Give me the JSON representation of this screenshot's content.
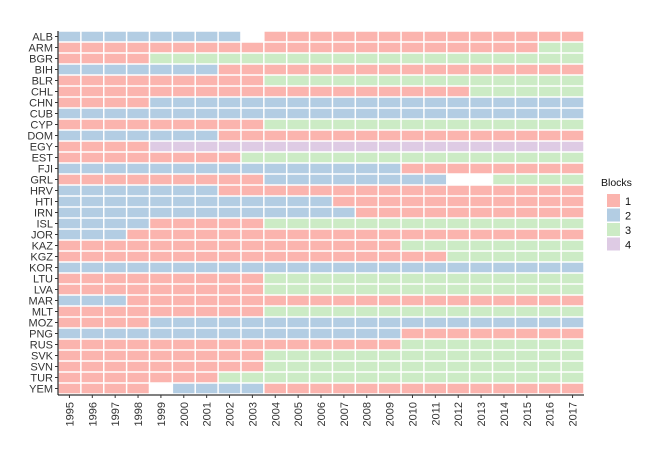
{
  "chart_data": {
    "type": "heatmap",
    "title": "",
    "xlabel": "",
    "ylabel": "",
    "grid": false,
    "legend_position": "right",
    "x": [
      "1995",
      "1996",
      "1997",
      "1998",
      "1999",
      "2000",
      "2001",
      "2002",
      "2003",
      "2004",
      "2005",
      "2006",
      "2007",
      "2008",
      "2009",
      "2010",
      "2011",
      "2012",
      "2013",
      "2014",
      "2015",
      "2016",
      "2017"
    ],
    "y": [
      "ALB",
      "ARM",
      "BGR",
      "BIH",
      "BLR",
      "CHL",
      "CHN",
      "CUB",
      "CYP",
      "DOM",
      "EGY",
      "EST",
      "FJI",
      "GRL",
      "HRV",
      "HTI",
      "IRN",
      "ISL",
      "JOR",
      "KAZ",
      "KGZ",
      "KOR",
      "LTU",
      "LVA",
      "MAR",
      "MLT",
      "MOZ",
      "PNG",
      "RUS",
      "SVK",
      "SVN",
      "TUR",
      "YEM"
    ],
    "legend": {
      "title": "Blocks",
      "items": [
        {
          "label": "1",
          "color": "#fbb4ae"
        },
        {
          "label": "2",
          "color": "#b3cde3"
        },
        {
          "label": "3",
          "color": "#ccebc5"
        },
        {
          "label": "4",
          "color": "#decbe4"
        }
      ]
    },
    "missing_color": "#ffffff",
    "blocks": [
      [
        2,
        2,
        2,
        2,
        2,
        2,
        2,
        2,
        0,
        1,
        1,
        1,
        1,
        1,
        1,
        1,
        1,
        1,
        1,
        1,
        1,
        1,
        1
      ],
      [
        1,
        1,
        1,
        1,
        1,
        1,
        1,
        1,
        1,
        1,
        1,
        1,
        1,
        1,
        1,
        1,
        1,
        1,
        1,
        1,
        1,
        3,
        3
      ],
      [
        1,
        1,
        1,
        1,
        3,
        3,
        3,
        3,
        3,
        3,
        3,
        3,
        3,
        3,
        3,
        3,
        3,
        3,
        3,
        3,
        3,
        3,
        3
      ],
      [
        2,
        2,
        2,
        2,
        2,
        2,
        2,
        1,
        1,
        1,
        1,
        1,
        1,
        1,
        1,
        1,
        1,
        1,
        1,
        1,
        1,
        1,
        1
      ],
      [
        1,
        1,
        1,
        1,
        1,
        1,
        1,
        1,
        1,
        3,
        3,
        3,
        3,
        3,
        3,
        3,
        3,
        3,
        3,
        3,
        3,
        3,
        3
      ],
      [
        1,
        1,
        1,
        1,
        1,
        1,
        1,
        1,
        1,
        1,
        1,
        1,
        1,
        1,
        1,
        1,
        1,
        1,
        3,
        3,
        3,
        3,
        3
      ],
      [
        1,
        1,
        1,
        1,
        2,
        2,
        2,
        2,
        2,
        2,
        2,
        2,
        2,
        2,
        2,
        2,
        2,
        2,
        2,
        2,
        2,
        2,
        2
      ],
      [
        2,
        2,
        2,
        2,
        2,
        2,
        2,
        2,
        2,
        2,
        2,
        2,
        2,
        2,
        2,
        2,
        2,
        2,
        2,
        2,
        2,
        2,
        2
      ],
      [
        1,
        1,
        1,
        1,
        1,
        1,
        1,
        1,
        1,
        3,
        3,
        3,
        3,
        3,
        3,
        3,
        3,
        3,
        3,
        3,
        3,
        3,
        3
      ],
      [
        2,
        2,
        2,
        2,
        2,
        2,
        2,
        1,
        1,
        1,
        1,
        1,
        1,
        1,
        1,
        1,
        1,
        1,
        1,
        1,
        1,
        1,
        1
      ],
      [
        1,
        1,
        1,
        1,
        4,
        4,
        4,
        4,
        4,
        4,
        4,
        4,
        4,
        4,
        4,
        4,
        4,
        4,
        4,
        4,
        4,
        4,
        4
      ],
      [
        1,
        1,
        1,
        1,
        1,
        1,
        1,
        1,
        3,
        3,
        3,
        3,
        3,
        3,
        3,
        3,
        3,
        3,
        3,
        3,
        3,
        3,
        3
      ],
      [
        2,
        2,
        2,
        2,
        2,
        2,
        2,
        2,
        2,
        2,
        2,
        2,
        2,
        2,
        2,
        1,
        1,
        1,
        1,
        1,
        1,
        1,
        1
      ],
      [
        1,
        1,
        1,
        1,
        1,
        1,
        1,
        1,
        1,
        2,
        2,
        2,
        2,
        2,
        2,
        2,
        2,
        0,
        0,
        3,
        3,
        3,
        3
      ],
      [
        2,
        2,
        2,
        2,
        2,
        2,
        2,
        1,
        1,
        1,
        1,
        1,
        1,
        1,
        1,
        1,
        1,
        1,
        1,
        1,
        1,
        1,
        1
      ],
      [
        2,
        2,
        2,
        2,
        2,
        2,
        2,
        2,
        2,
        2,
        2,
        2,
        1,
        1,
        1,
        1,
        1,
        1,
        1,
        1,
        1,
        1,
        1
      ],
      [
        2,
        2,
        2,
        2,
        2,
        2,
        2,
        2,
        2,
        2,
        2,
        2,
        2,
        1,
        1,
        1,
        1,
        1,
        1,
        1,
        1,
        1,
        1
      ],
      [
        2,
        2,
        2,
        2,
        1,
        1,
        1,
        1,
        1,
        3,
        3,
        3,
        3,
        3,
        3,
        3,
        3,
        3,
        3,
        3,
        3,
        3,
        3
      ],
      [
        2,
        2,
        2,
        1,
        1,
        1,
        1,
        1,
        1,
        1,
        1,
        1,
        1,
        1,
        1,
        1,
        1,
        1,
        1,
        1,
        1,
        1,
        1
      ],
      [
        1,
        1,
        1,
        1,
        1,
        1,
        1,
        1,
        1,
        1,
        1,
        1,
        1,
        1,
        1,
        3,
        3,
        3,
        3,
        3,
        3,
        3,
        3
      ],
      [
        1,
        1,
        1,
        1,
        1,
        1,
        1,
        1,
        1,
        1,
        1,
        1,
        1,
        1,
        1,
        1,
        1,
        3,
        3,
        3,
        3,
        3,
        3
      ],
      [
        2,
        2,
        2,
        2,
        2,
        2,
        2,
        2,
        2,
        2,
        2,
        2,
        2,
        2,
        2,
        2,
        2,
        2,
        2,
        2,
        2,
        2,
        2
      ],
      [
        1,
        1,
        1,
        1,
        1,
        1,
        1,
        1,
        1,
        3,
        3,
        3,
        3,
        3,
        3,
        3,
        3,
        3,
        3,
        3,
        3,
        3,
        3
      ],
      [
        1,
        1,
        1,
        1,
        1,
        1,
        1,
        1,
        1,
        3,
        3,
        3,
        3,
        3,
        3,
        3,
        3,
        3,
        3,
        3,
        3,
        3,
        3
      ],
      [
        2,
        2,
        2,
        1,
        1,
        1,
        1,
        1,
        1,
        1,
        1,
        1,
        1,
        1,
        1,
        1,
        1,
        1,
        1,
        1,
        1,
        1,
        1
      ],
      [
        1,
        1,
        1,
        1,
        1,
        1,
        1,
        1,
        1,
        3,
        3,
        3,
        3,
        3,
        3,
        3,
        3,
        3,
        3,
        3,
        3,
        3,
        3
      ],
      [
        1,
        1,
        1,
        1,
        2,
        2,
        2,
        2,
        2,
        2,
        2,
        2,
        2,
        2,
        2,
        2,
        2,
        2,
        2,
        2,
        2,
        2,
        2
      ],
      [
        2,
        2,
        2,
        2,
        2,
        2,
        2,
        2,
        2,
        2,
        2,
        2,
        2,
        2,
        2,
        1,
        1,
        1,
        1,
        1,
        1,
        1,
        1
      ],
      [
        1,
        1,
        1,
        1,
        1,
        1,
        1,
        1,
        1,
        1,
        1,
        1,
        1,
        1,
        1,
        3,
        3,
        3,
        3,
        3,
        3,
        3,
        3
      ],
      [
        1,
        1,
        1,
        1,
        1,
        1,
        1,
        1,
        1,
        3,
        3,
        3,
        3,
        3,
        3,
        3,
        3,
        3,
        3,
        3,
        3,
        3,
        3
      ],
      [
        1,
        1,
        1,
        1,
        1,
        1,
        1,
        1,
        1,
        3,
        3,
        3,
        3,
        3,
        3,
        3,
        3,
        3,
        3,
        3,
        3,
        3,
        3
      ],
      [
        1,
        1,
        1,
        1,
        1,
        1,
        1,
        3,
        3,
        3,
        3,
        3,
        3,
        3,
        3,
        3,
        3,
        3,
        3,
        3,
        3,
        3,
        3
      ],
      [
        1,
        1,
        1,
        1,
        0,
        2,
        2,
        2,
        2,
        1,
        1,
        1,
        1,
        1,
        1,
        1,
        1,
        1,
        1,
        1,
        1,
        1,
        1
      ]
    ]
  }
}
